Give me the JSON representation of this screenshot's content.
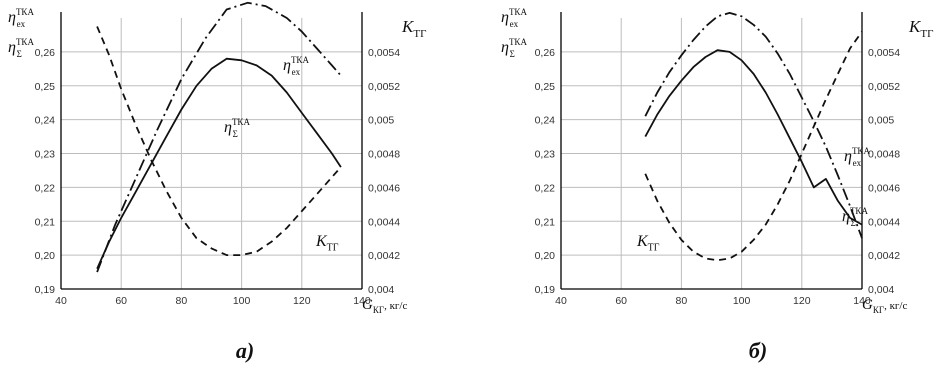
{
  "chart_data": [
    {
      "type": "line",
      "caption": "а)",
      "xlabel_var": "G",
      "xlabel_sub": "КГ",
      "xlabel_unit": ", кг/с",
      "ylabel_left": [
        {
          "var": "η",
          "sub": "ex",
          "sup": "ТКА"
        },
        {
          "var": "η",
          "sub": "Σ",
          "sup": "ТКА"
        }
      ],
      "ylabel_right": {
        "var": "K",
        "sub": "ТГ"
      },
      "xlim": [
        40,
        140
      ],
      "xticks": [
        "40",
        "60",
        "80",
        "100",
        "120",
        "140"
      ],
      "ylim_left": [
        0.19,
        0.27
      ],
      "yticks_left": [
        "0,19",
        "0,20",
        "0,21",
        "0,22",
        "0,23",
        "0,24",
        "0,25",
        "0,26"
      ],
      "ylim_right": [
        0.004,
        0.0056
      ],
      "yticks_right": [
        "0,004",
        "0,0042",
        "0,0044",
        "0,0046",
        "0,0048",
        "0,005",
        "0,0052",
        "0,0054"
      ],
      "series": [
        {
          "name": "η_ex^ТКА",
          "label_var": "η",
          "label_sub": "ex",
          "label_sup": "ТКА",
          "style": "dashdot",
          "axis": "left",
          "x": [
            52,
            58,
            65,
            72,
            80,
            88,
            95,
            102,
            108,
            115,
            120,
            125,
            130,
            133
          ],
          "y": [
            0.195,
            0.209,
            0.223,
            0.237,
            0.252,
            0.264,
            0.2725,
            0.2745,
            0.2735,
            0.27,
            0.266,
            0.261,
            0.256,
            0.253
          ]
        },
        {
          "name": "η_Σ^ТКА",
          "label_var": "η",
          "label_sub": "Σ",
          "label_sup": "ТКА",
          "style": "solid",
          "axis": "left",
          "x": [
            52,
            56,
            60,
            65,
            70,
            75,
            80,
            85,
            90,
            95,
            100,
            105,
            110,
            115,
            120,
            125,
            130,
            133
          ],
          "y": [
            0.196,
            0.204,
            0.211,
            0.219,
            0.227,
            0.235,
            0.243,
            0.25,
            0.255,
            0.258,
            0.2575,
            0.256,
            0.253,
            0.248,
            0.242,
            0.236,
            0.23,
            0.226
          ]
        },
        {
          "name": "K_ТГ",
          "label_var": "K",
          "label_sub": "ТГ",
          "style": "dashed",
          "axis": "right",
          "x": [
            52,
            56,
            60,
            65,
            70,
            75,
            80,
            85,
            90,
            95,
            100,
            105,
            110,
            115,
            120,
            125,
            130,
            133
          ],
          "y": [
            0.00555,
            0.00538,
            0.00518,
            0.00496,
            0.00476,
            0.00458,
            0.00442,
            0.0043,
            0.00424,
            0.0042,
            0.0042,
            0.00422,
            0.00428,
            0.00436,
            0.00446,
            0.00456,
            0.00466,
            0.00472
          ]
        }
      ]
    },
    {
      "type": "line",
      "caption": "б)",
      "xlabel_var": "G",
      "xlabel_sub": "КГ",
      "xlabel_unit": ", кг/с",
      "ylabel_left": [
        {
          "var": "η",
          "sub": "ex",
          "sup": "ТКА"
        },
        {
          "var": "η",
          "sub": "Σ",
          "sup": "ТКА"
        }
      ],
      "ylabel_right": {
        "var": "K",
        "sub": "ТГ"
      },
      "xlim": [
        40,
        140
      ],
      "xticks": [
        "40",
        "60",
        "80",
        "100",
        "120",
        "140"
      ],
      "ylim_left": [
        0.19,
        0.27
      ],
      "yticks_left": [
        "0,19",
        "0,20",
        "0,21",
        "0,22",
        "0,23",
        "0,24",
        "0,25",
        "0,26"
      ],
      "ylim_right": [
        0.004,
        0.0056
      ],
      "yticks_right": [
        "0,004",
        "0,0042",
        "0,0044",
        "0,0046",
        "0,0048",
        "0,005",
        "0,0052",
        "0,0054"
      ],
      "series": [
        {
          "name": "η_ex^ТКА",
          "label_var": "η",
          "label_sub": "ex",
          "label_sup": "ТКА",
          "style": "dashdot",
          "axis": "left",
          "x": [
            68,
            72,
            76,
            80,
            84,
            88,
            92,
            96,
            100,
            104,
            108,
            112,
            116,
            120,
            124,
            128,
            132,
            136,
            140
          ],
          "y": [
            0.241,
            0.248,
            0.254,
            0.259,
            0.2635,
            0.2675,
            0.2705,
            0.2715,
            0.2705,
            0.268,
            0.2645,
            0.2595,
            0.2535,
            0.2465,
            0.2395,
            0.232,
            0.2235,
            0.2145,
            0.205
          ]
        },
        {
          "name": "η_Σ^ТКА",
          "label_var": "η",
          "label_sub": "Σ",
          "label_sup": "ТКА",
          "style": "solid",
          "axis": "left",
          "x": [
            68,
            72,
            76,
            80,
            84,
            88,
            92,
            96,
            100,
            104,
            108,
            112,
            116,
            120,
            124,
            128,
            132,
            136,
            140
          ],
          "y": [
            0.235,
            0.2415,
            0.247,
            0.2515,
            0.2555,
            0.2585,
            0.2605,
            0.26,
            0.2575,
            0.2535,
            0.248,
            0.2415,
            0.2345,
            0.2275,
            0.22,
            0.2225,
            0.216,
            0.211,
            0.209
          ]
        },
        {
          "name": "K_ТГ",
          "label_var": "K",
          "label_sub": "ТГ",
          "style": "dashed",
          "axis": "right",
          "x": [
            68,
            72,
            76,
            80,
            84,
            88,
            92,
            96,
            100,
            104,
            108,
            112,
            116,
            120,
            124,
            128,
            132,
            136,
            140
          ],
          "y": [
            0.00468,
            0.00452,
            0.00439,
            0.00429,
            0.00422,
            0.00418,
            0.00417,
            0.00418,
            0.00422,
            0.00429,
            0.00438,
            0.0045,
            0.00464,
            0.0048,
            0.00496,
            0.00512,
            0.00527,
            0.00542,
            0.00552
          ]
        }
      ]
    }
  ],
  "colors": {
    "axis": "#000000",
    "grid": "#bdbdbd",
    "line": "#111111",
    "ticktext": "#333333"
  }
}
